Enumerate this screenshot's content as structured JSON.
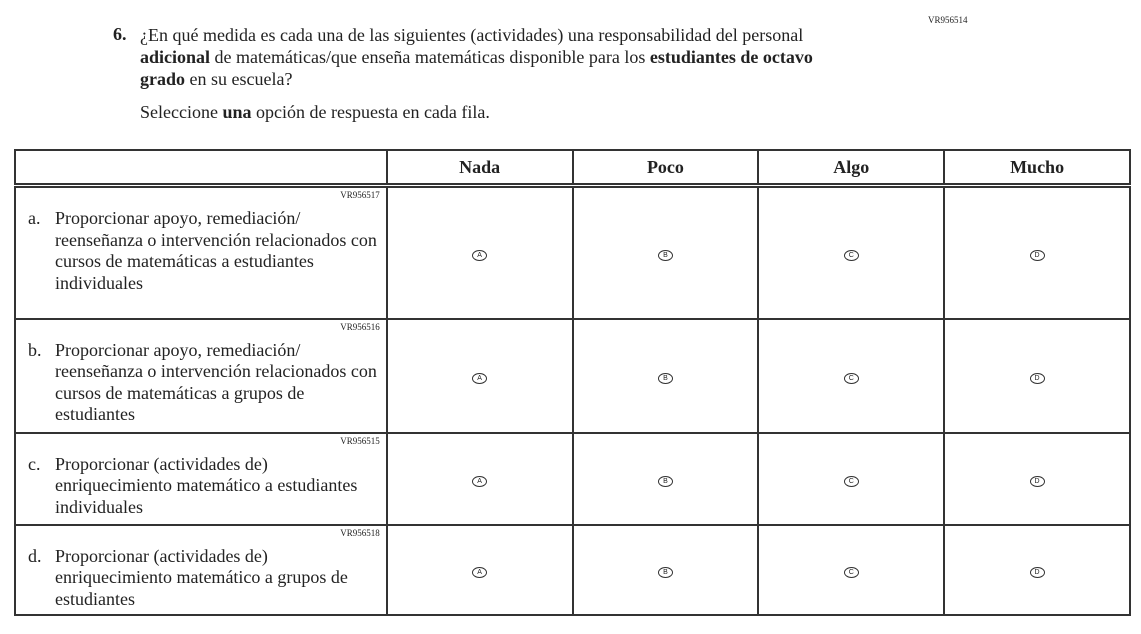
{
  "question": {
    "id": "VR956514",
    "number": "6.",
    "text_parts": [
      "¿En qué medida es cada una de las siguientes (actividades) una responsabilidad del personal ",
      "adicional",
      " de matemáticas/que enseña matemáticas disponible para los ",
      "estudiantes de octavo grado",
      " en su escuela?"
    ],
    "instruction_parts": [
      "Seleccione ",
      "una",
      " opción de respuesta en cada fila."
    ]
  },
  "columns": [
    "Nada",
    "Poco",
    "Algo",
    "Mucho"
  ],
  "options": [
    "A",
    "B",
    "C",
    "D"
  ],
  "rows": [
    {
      "id": "VR956517",
      "letter": "a.",
      "text": "Proporcionar apoyo, remediación/ reenseñanza o intervención relacionados con cursos de matemáticas a estudiantes individuales"
    },
    {
      "id": "VR956516",
      "letter": "b.",
      "text": "Proporcionar apoyo, remediación/ reenseñanza o intervención relacionados con cursos de matemáticas a grupos de estudiantes"
    },
    {
      "id": "VR956515",
      "letter": "c.",
      "text": "Proporcionar (actividades de) enriquecimiento matemático a estudiantes individuales"
    },
    {
      "id": "VR956518",
      "letter": "d.",
      "text": "Proporcionar (actividades de) enriquecimiento matemático a grupos de estudiantes"
    }
  ]
}
